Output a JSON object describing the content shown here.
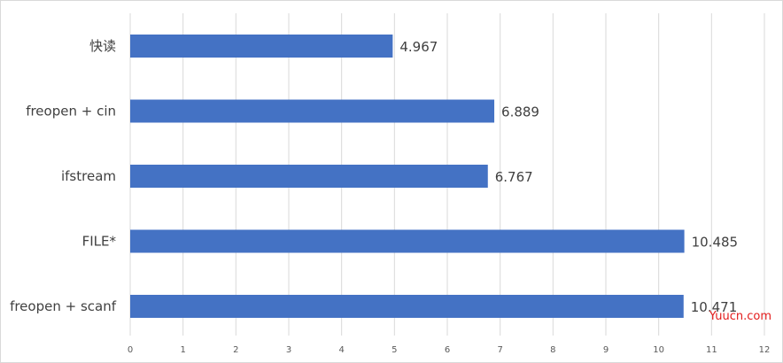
{
  "chart_data": {
    "type": "bar",
    "orientation": "horizontal",
    "categories": [
      "快读",
      "freopen + cin",
      "ifstream",
      "FILE*",
      "freopen + scanf"
    ],
    "values": [
      4.967,
      6.889,
      6.767,
      10.485,
      10.471
    ],
    "value_labels": [
      "4.967",
      "6.889",
      "6.767",
      "10.485",
      "10.471"
    ],
    "xlim": [
      0,
      12
    ],
    "xticks": [
      "0",
      "1",
      "2",
      "3",
      "4",
      "5",
      "6",
      "7",
      "8",
      "9",
      "10",
      "11",
      "12"
    ],
    "grid": true,
    "legend": "none",
    "bar_color": "#4472c4",
    "grid_color": "#d9d9d9"
  },
  "watermark": {
    "text": "Yuucn.com",
    "color": "#e31b1b"
  }
}
